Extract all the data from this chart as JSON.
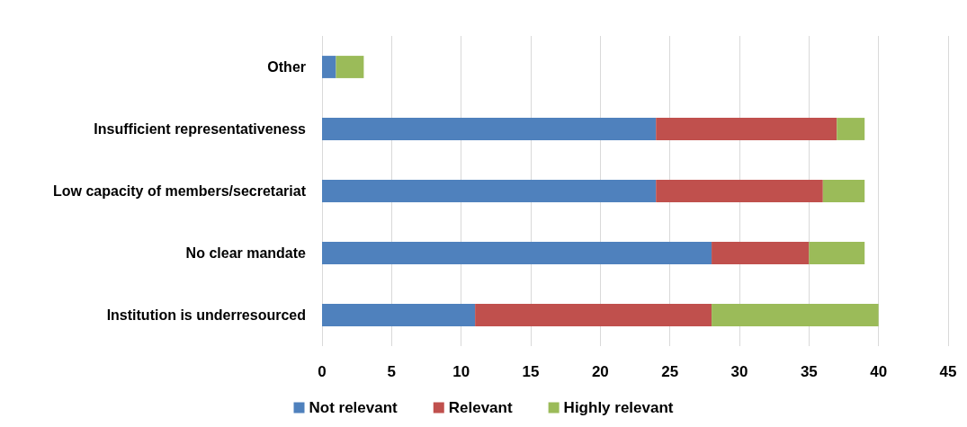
{
  "chart_data": {
    "type": "bar",
    "orientation": "horizontal",
    "stacked": true,
    "categories": [
      "Other",
      "Insufficient representativeness",
      "Low capacity of members/secretariat",
      "No clear mandate",
      "Institution is underresourced"
    ],
    "series": [
      {
        "name": "Not relevant",
        "color": "#4f81bd",
        "values": [
          1,
          24,
          24,
          28,
          11
        ]
      },
      {
        "name": "Relevant",
        "color": "#c0504d",
        "values": [
          0,
          13,
          12,
          7,
          17
        ]
      },
      {
        "name": "Highly relevant",
        "color": "#9bbb59",
        "values": [
          2,
          2,
          3,
          4,
          12
        ]
      }
    ],
    "xlim": [
      0,
      45
    ],
    "xticks": [
      0,
      5,
      10,
      15,
      20,
      25,
      30,
      35,
      40,
      45
    ],
    "grid": "x",
    "legend": "bottom"
  }
}
